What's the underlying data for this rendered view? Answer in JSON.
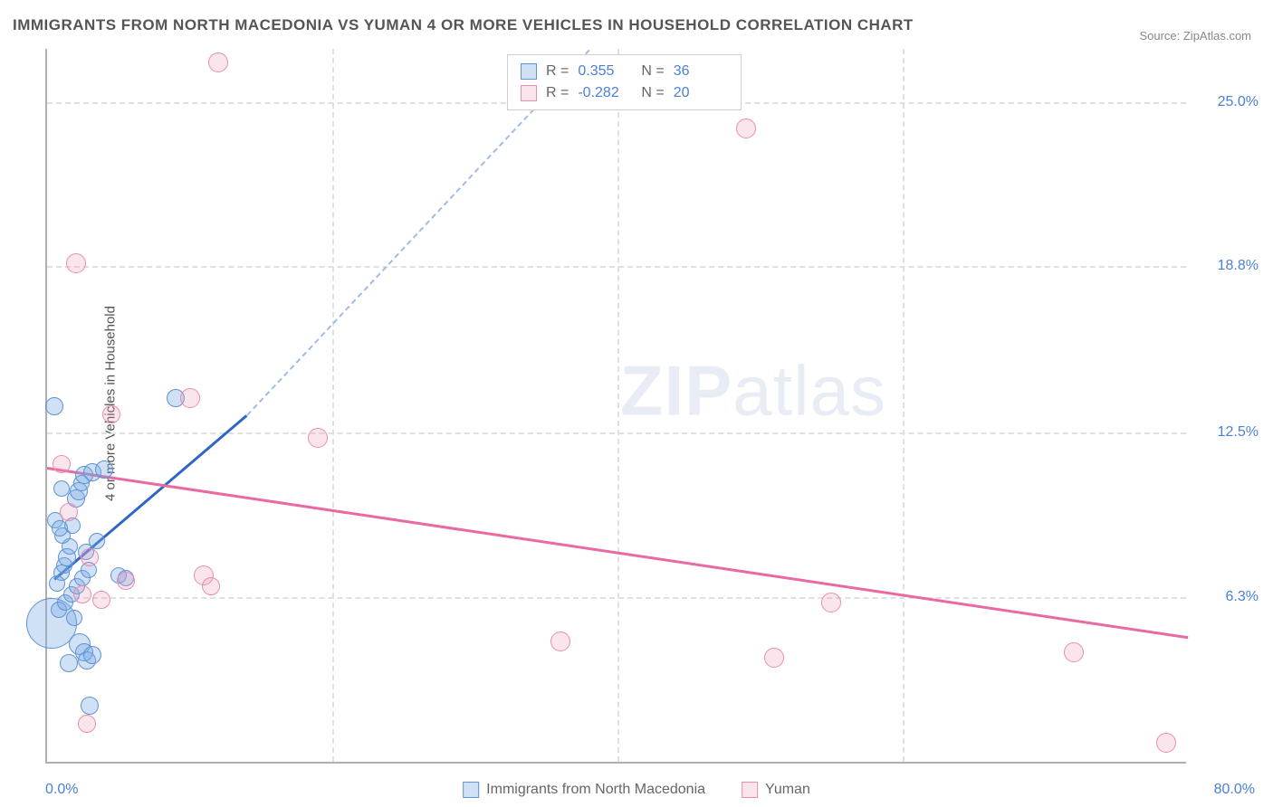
{
  "title": "IMMIGRANTS FROM NORTH MACEDONIA VS YUMAN 4 OR MORE VEHICLES IN HOUSEHOLD CORRELATION CHART",
  "source": "Source: ZipAtlas.com",
  "ylabel": "4 or more Vehicles in Household",
  "watermark": "ZIPatlas",
  "chart": {
    "type": "scatter",
    "xlim": [
      0,
      80
    ],
    "ylim": [
      0,
      27
    ],
    "x_tick_min": "0.0%",
    "x_tick_max": "80.0%",
    "y_ticks": [
      {
        "v": 6.3,
        "label": "6.3%"
      },
      {
        "v": 12.5,
        "label": "12.5%"
      },
      {
        "v": 18.8,
        "label": "18.8%"
      },
      {
        "v": 25.0,
        "label": "25.0%"
      }
    ],
    "x_gridlines": [
      20,
      40,
      60
    ],
    "background_color": "#ffffff",
    "grid_color": "#e0e0e0",
    "axis_color": "#b0b0b0",
    "tick_color": "#4a7fd6",
    "series": [
      {
        "name": "Immigrants from North Macedonia",
        "color_fill": "rgba(120,170,230,0.35)",
        "color_stroke": "#5d93d6",
        "trend_color_solid": "#2f66c4",
        "trend_color_dash": "#9fbce6",
        "R": 0.355,
        "N": 36,
        "trend": {
          "x1": 0.5,
          "y1": 7.0,
          "x2_solid": 14,
          "y2_solid": 13.2,
          "x2_dash": 38,
          "y2_dash": 27
        },
        "points": [
          {
            "x": 0.3,
            "y": 5.3,
            "r": 28
          },
          {
            "x": 0.5,
            "y": 13.5,
            "r": 10
          },
          {
            "x": 1.0,
            "y": 7.2,
            "r": 9
          },
          {
            "x": 1.2,
            "y": 7.5,
            "r": 9
          },
          {
            "x": 1.4,
            "y": 7.8,
            "r": 10
          },
          {
            "x": 1.6,
            "y": 8.2,
            "r": 9
          },
          {
            "x": 1.8,
            "y": 9.0,
            "r": 9
          },
          {
            "x": 2.0,
            "y": 10.0,
            "r": 10
          },
          {
            "x": 2.2,
            "y": 10.3,
            "r": 10
          },
          {
            "x": 2.4,
            "y": 10.6,
            "r": 9
          },
          {
            "x": 2.6,
            "y": 10.9,
            "r": 10
          },
          {
            "x": 3.2,
            "y": 11.0,
            "r": 10
          },
          {
            "x": 4.0,
            "y": 11.1,
            "r": 10
          },
          {
            "x": 0.8,
            "y": 5.8,
            "r": 9
          },
          {
            "x": 1.3,
            "y": 6.1,
            "r": 9
          },
          {
            "x": 1.7,
            "y": 6.4,
            "r": 9
          },
          {
            "x": 2.1,
            "y": 6.7,
            "r": 9
          },
          {
            "x": 2.5,
            "y": 7.0,
            "r": 9
          },
          {
            "x": 2.9,
            "y": 7.3,
            "r": 9
          },
          {
            "x": 0.6,
            "y": 9.2,
            "r": 9
          },
          {
            "x": 2.3,
            "y": 4.5,
            "r": 12
          },
          {
            "x": 2.6,
            "y": 4.2,
            "r": 10
          },
          {
            "x": 2.8,
            "y": 3.9,
            "r": 10
          },
          {
            "x": 3.2,
            "y": 4.1,
            "r": 10
          },
          {
            "x": 1.5,
            "y": 3.8,
            "r": 10
          },
          {
            "x": 3.0,
            "y": 2.2,
            "r": 10
          },
          {
            "x": 5.0,
            "y": 7.1,
            "r": 9
          },
          {
            "x": 5.5,
            "y": 7.0,
            "r": 9
          },
          {
            "x": 9.0,
            "y": 13.8,
            "r": 10
          },
          {
            "x": 1.1,
            "y": 8.6,
            "r": 9
          },
          {
            "x": 0.9,
            "y": 8.9,
            "r": 9
          },
          {
            "x": 1.9,
            "y": 5.5,
            "r": 9
          },
          {
            "x": 2.7,
            "y": 8.0,
            "r": 9
          },
          {
            "x": 3.5,
            "y": 8.4,
            "r": 9
          },
          {
            "x": 0.7,
            "y": 6.8,
            "r": 9
          },
          {
            "x": 1.0,
            "y": 10.4,
            "r": 9
          }
        ]
      },
      {
        "name": "Yuman",
        "color_fill": "rgba(240,150,180,0.25)",
        "color_stroke": "#e98db0",
        "trend_color_solid": "#e86aa0",
        "R": -0.282,
        "N": 20,
        "trend": {
          "x1": 0,
          "y1": 11.2,
          "x2_solid": 80,
          "y2_solid": 4.8
        },
        "points": [
          {
            "x": 12.0,
            "y": 26.5,
            "r": 11
          },
          {
            "x": 49.0,
            "y": 24.0,
            "r": 11
          },
          {
            "x": 2.0,
            "y": 18.9,
            "r": 11
          },
          {
            "x": 10.0,
            "y": 13.8,
            "r": 11
          },
          {
            "x": 4.5,
            "y": 13.2,
            "r": 10
          },
          {
            "x": 19.0,
            "y": 12.3,
            "r": 11
          },
          {
            "x": 3.0,
            "y": 7.8,
            "r": 10
          },
          {
            "x": 5.5,
            "y": 6.9,
            "r": 10
          },
          {
            "x": 11.0,
            "y": 7.1,
            "r": 11
          },
          {
            "x": 11.5,
            "y": 6.7,
            "r": 10
          },
          {
            "x": 36.0,
            "y": 4.6,
            "r": 11
          },
          {
            "x": 51.0,
            "y": 4.0,
            "r": 11
          },
          {
            "x": 55.0,
            "y": 6.1,
            "r": 11
          },
          {
            "x": 72.0,
            "y": 4.2,
            "r": 11
          },
          {
            "x": 78.5,
            "y": 0.8,
            "r": 11
          },
          {
            "x": 2.5,
            "y": 6.4,
            "r": 10
          },
          {
            "x": 3.8,
            "y": 6.2,
            "r": 10
          },
          {
            "x": 1.0,
            "y": 11.3,
            "r": 10
          },
          {
            "x": 2.8,
            "y": 1.5,
            "r": 10
          },
          {
            "x": 1.5,
            "y": 9.5,
            "r": 10
          }
        ]
      }
    ]
  },
  "legend_top": {
    "r_label": "R =",
    "n_label": "N ="
  },
  "legend_bottom": [
    {
      "swatch": "blue",
      "label": "Immigrants from North Macedonia"
    },
    {
      "swatch": "pink",
      "label": "Yuman"
    }
  ]
}
